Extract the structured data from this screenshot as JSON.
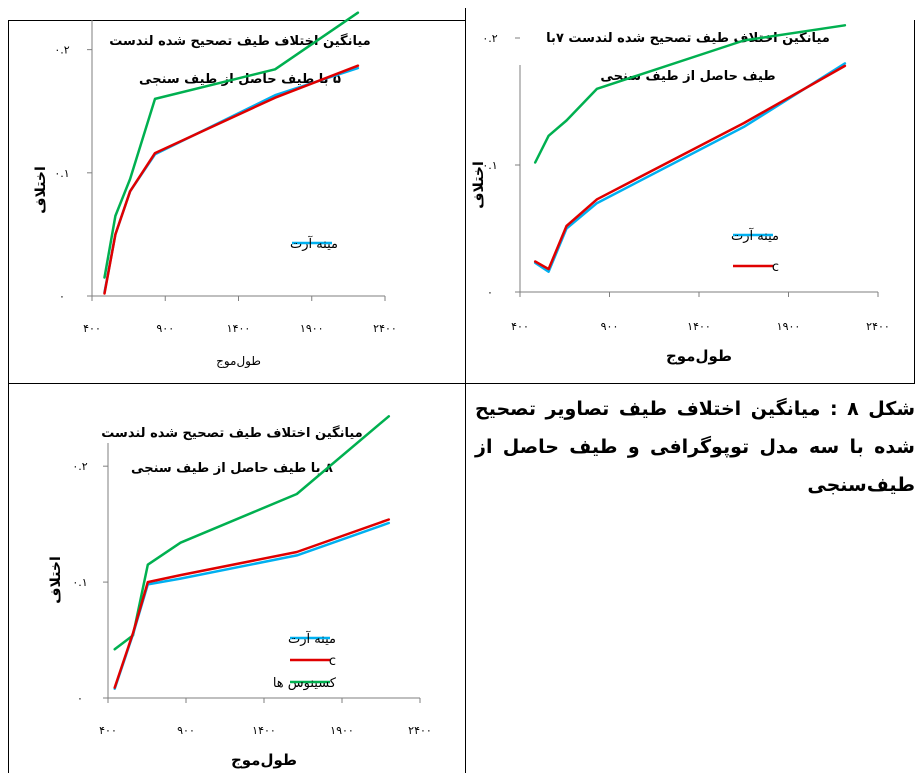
{
  "chart_data": [
    {
      "type": "line",
      "title": [
        "میانگین اختلاف طیف تصحیح شده لندست",
        "۵ با طیف حاصل از طیف سنجی"
      ],
      "xlabel": "طول‌موج",
      "ylabel": "اختلاف",
      "xlim": [
        400,
        2400
      ],
      "ylim": [
        0,
        0.22
      ],
      "x_ticks": [
        "۴۰۰",
        "۹۰۰",
        "۱۴۰۰",
        "۱۹۰۰",
        "۲۴۰۰"
      ],
      "y_ticks": [
        "۰",
        "۰.۱",
        "۰.۲"
      ],
      "series": [
        {
          "name": "",
          "color": "#00B050",
          "x": [
            485,
            560,
            660,
            830,
            1650,
            2215
          ],
          "y": [
            0.015,
            0.065,
            0.095,
            0.16,
            0.184,
            0.23
          ]
        },
        {
          "name": "مینه آرت",
          "color": "#00B0F0",
          "x": [
            485,
            560,
            660,
            830,
            1650,
            2215
          ],
          "y": [
            0.003,
            0.05,
            0.085,
            0.115,
            0.163,
            0.185
          ]
        },
        {
          "name": "",
          "color": "#E00000",
          "x": [
            485,
            560,
            660,
            830,
            1650,
            2215
          ],
          "y": [
            0.002,
            0.05,
            0.085,
            0.116,
            0.161,
            0.187
          ]
        }
      ],
      "legend": [
        {
          "name": "مینه آرت",
          "color": "#00B0F0"
        }
      ],
      "legend_position": "center-right"
    },
    {
      "type": "line",
      "title": [
        "میانگین اختلاف طیف تصحیح شده لندست ۷با",
        "طیف حاصل از طیف سنجی"
      ],
      "xlabel": "طول‌موج",
      "ylabel": "اختلاف",
      "xlim": [
        400,
        2400
      ],
      "ylim": [
        0,
        0.2
      ],
      "x_ticks": [
        "۴۰۰",
        "۹۰۰",
        "۱۴۰۰",
        "۱۹۰۰",
        "۲۴۰۰"
      ],
      "y_ticks": [
        "۰",
        "۰.۱",
        "۰.۲"
      ],
      "series": [
        {
          "name": "",
          "color": "#00B050",
          "x": [
            485,
            560,
            660,
            830,
            1650,
            2215
          ],
          "y": [
            0.102,
            0.123,
            0.135,
            0.16,
            0.198,
            0.21
          ]
        },
        {
          "name": "مینه آرت",
          "color": "#00B0F0",
          "x": [
            485,
            560,
            660,
            830,
            1650,
            2215
          ],
          "y": [
            0.023,
            0.016,
            0.05,
            0.07,
            0.13,
            0.18
          ]
        },
        {
          "name": "c",
          "color": "#E00000",
          "x": [
            485,
            560,
            660,
            830,
            1650,
            2215
          ],
          "y": [
            0.024,
            0.018,
            0.052,
            0.073,
            0.133,
            0.178
          ]
        }
      ],
      "legend": [
        {
          "name": "مینه آرت",
          "color": "#00B0F0"
        },
        {
          "name": "c",
          "color": "#E00000"
        }
      ],
      "legend_position": "bottom-right"
    },
    {
      "type": "line",
      "title": [
        "میانگین اختلاف طیف تصحیح شده لندست",
        "۸ با طیف حاصل از طیف سنجی"
      ],
      "xlabel": "طول‌موج",
      "ylabel": "اختلاف",
      "xlim": [
        400,
        2400
      ],
      "ylim": [
        0,
        0.22
      ],
      "x_ticks": [
        "۴۰۰",
        "۹۰۰",
        "۱۴۰۰",
        "۱۹۰۰",
        "۲۴۰۰"
      ],
      "y_ticks": [
        "۰",
        "۰.۱",
        "۰.۲"
      ],
      "series": [
        {
          "name": "کسینوس ها",
          "color": "#00B050",
          "x": [
            443,
            560,
            655,
            865,
            1610,
            2200
          ],
          "y": [
            0.042,
            0.054,
            0.115,
            0.134,
            0.176,
            0.243
          ]
        },
        {
          "name": "مینه آرت",
          "color": "#00B0F0",
          "x": [
            443,
            560,
            655,
            865,
            1610,
            2200
          ],
          "y": [
            0.008,
            0.055,
            0.098,
            0.103,
            0.123,
            0.151
          ]
        },
        {
          "name": "c",
          "color": "#E00000",
          "x": [
            443,
            560,
            655,
            865,
            1610,
            2200
          ],
          "y": [
            0.009,
            0.056,
            0.1,
            0.106,
            0.126,
            0.154
          ]
        }
      ],
      "legend": [
        {
          "name": "مینه آرت",
          "color": "#00B0F0"
        },
        {
          "name": "c",
          "color": "#E00000"
        },
        {
          "name": "کسینوس ها",
          "color": "#00B050"
        }
      ],
      "legend_position": "bottom-right"
    }
  ],
  "caption": "شکل ۸ : میانگین اختلاف طیف تصاویر تصحیح شده با سه مدل توپوگرافی و طیف حاصل از طیف‌سنجی"
}
